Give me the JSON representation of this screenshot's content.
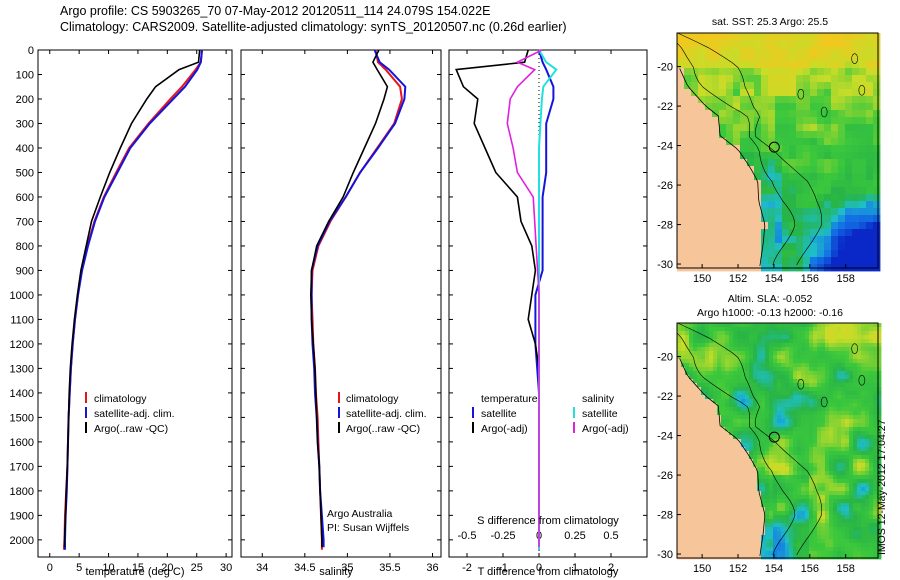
{
  "header": {
    "line1": "Argo profile: CS 5903265_70 07-May-2012 20120511_114 24.079S 154.022E",
    "line2": "Climatology: CARS2009. Satellite-adjusted climatology: synTS_20120507.nc (0.26d earlier)"
  },
  "depth_ticks": [
    "0",
    "100",
    "200",
    "300",
    "400",
    "500",
    "600",
    "700",
    "800",
    "900",
    "1000",
    "1100",
    "1200",
    "1300",
    "1400",
    "1500",
    "1600",
    "1700",
    "1800",
    "1900",
    "2000"
  ],
  "panels": {
    "temperature": {
      "xlabel": "temperature (deg C)",
      "xticks": [
        "0",
        "5",
        "10",
        "15",
        "20",
        "25",
        "30"
      ],
      "legend": [
        "climatology",
        "satellite-adj. clim.",
        "Argo(..raw -QC)"
      ]
    },
    "salinity": {
      "xlabel": "salinity",
      "xticks": [
        "34",
        "34.5",
        "35",
        "35.5",
        "36"
      ],
      "legend": [
        "climatology",
        "satellite-adj. clim.",
        "Argo(..raw -QC)"
      ],
      "note1": "Argo Australia",
      "note2": "PI: Susan Wijffels"
    },
    "difference": {
      "xlabel": "T difference from climatology",
      "xticks": [
        "-2",
        "-1",
        "0",
        "1",
        "2"
      ],
      "top_label": "S difference from climatology",
      "top_ticks": [
        "-0.5",
        "-0.25",
        "0",
        "0.25",
        "0.5"
      ],
      "legend_t_title": "temperature",
      "legend_s_title": "salinity",
      "legend_t": [
        "satellite",
        "Argo(-adj)"
      ],
      "legend_s": [
        "satellite",
        "Argo(-adj)"
      ]
    }
  },
  "maps": {
    "sst_title": "sat. SST: 25.3 Argo: 25.5",
    "sla_title1": "Altim. SLA: -0.052",
    "sla_title2": "Argo h1000: -0.13 h2000: -0.16",
    "lon_ticks": [
      "150",
      "152",
      "154",
      "156",
      "158"
    ],
    "lat_ticks": [
      "-20",
      "-22",
      "-24",
      "-26",
      "-28",
      "-30"
    ]
  },
  "footer": {
    "stamp": "IMOS 12-May-2012 17:04:27"
  },
  "colors": {
    "climatology": "#e8141c",
    "satellite": "#1414dc",
    "argo": "#000000",
    "salinity_sat": "#22e0e0",
    "salinity_argo": "#e020e0",
    "land": "#f6c69a"
  },
  "chart_data": [
    {
      "type": "line",
      "name": "temperature profile",
      "xlabel": "temperature (deg C)",
      "ylabel": "",
      "xlim": [
        -2,
        31
      ],
      "ylim": [
        2070,
        0
      ],
      "legend": "lower-center",
      "series": [
        {
          "name": "climatology",
          "color": "#e8141c",
          "points": [
            [
              25.9,
              0
            ],
            [
              25.7,
              50
            ],
            [
              24.8,
              80
            ],
            [
              22.5,
              150
            ],
            [
              20.5,
              200
            ],
            [
              16.8,
              300
            ],
            [
              13.5,
              400
            ],
            [
              11.3,
              500
            ],
            [
              9.2,
              600
            ],
            [
              7.6,
              700
            ],
            [
              6.4,
              800
            ],
            [
              5.4,
              900
            ],
            [
              4.8,
              1000
            ],
            [
              4.3,
              1100
            ],
            [
              3.9,
              1200
            ],
            [
              3.6,
              1300
            ],
            [
              3.4,
              1400
            ],
            [
              3.2,
              1500
            ],
            [
              3.1,
              1600
            ],
            [
              3.0,
              1700
            ],
            [
              2.8,
              1800
            ],
            [
              2.6,
              1900
            ],
            [
              2.5,
              2000
            ],
            [
              2.4,
              2040
            ]
          ]
        },
        {
          "name": "satellite-adj. clim.",
          "color": "#1414dc",
          "points": [
            [
              25.9,
              0
            ],
            [
              25.7,
              50
            ],
            [
              25.1,
              80
            ],
            [
              23.0,
              150
            ],
            [
              21.0,
              200
            ],
            [
              17.0,
              300
            ],
            [
              13.7,
              400
            ],
            [
              11.5,
              500
            ],
            [
              9.3,
              600
            ],
            [
              7.7,
              700
            ],
            [
              6.5,
              800
            ],
            [
              5.5,
              900
            ],
            [
              4.8,
              1000
            ],
            [
              4.3,
              1100
            ],
            [
              3.9,
              1200
            ],
            [
              3.6,
              1300
            ],
            [
              3.4,
              1400
            ],
            [
              3.2,
              1500
            ],
            [
              3.1,
              1600
            ],
            [
              3.0,
              1700
            ],
            [
              2.9,
              1800
            ],
            [
              2.7,
              1900
            ],
            [
              2.6,
              2000
            ],
            [
              2.6,
              2040
            ]
          ]
        },
        {
          "name": "Argo(..raw -QC)",
          "color": "#000000",
          "points": [
            [
              25.5,
              0
            ],
            [
              25.3,
              50
            ],
            [
              22.0,
              80
            ],
            [
              18.0,
              150
            ],
            [
              16.5,
              200
            ],
            [
              13.9,
              300
            ],
            [
              12.0,
              400
            ],
            [
              10.2,
              500
            ],
            [
              8.6,
              600
            ],
            [
              7.1,
              700
            ],
            [
              6.2,
              800
            ],
            [
              5.3,
              900
            ],
            [
              4.7,
              1000
            ],
            [
              4.2,
              1100
            ],
            [
              3.8,
              1200
            ],
            [
              3.5,
              1300
            ],
            [
              3.3,
              1400
            ],
            [
              3.2,
              1500
            ],
            [
              3.1,
              1600
            ],
            [
              3.0,
              1700
            ],
            [
              2.8,
              1800
            ],
            [
              2.7,
              1900
            ],
            [
              2.5,
              2000
            ],
            [
              2.5,
              2030
            ]
          ]
        }
      ]
    },
    {
      "type": "line",
      "name": "salinity profile",
      "xlabel": "salinity",
      "ylabel": "",
      "xlim": [
        33.75,
        36.1
      ],
      "ylim": [
        2070,
        0
      ],
      "legend": "lower-center",
      "series": [
        {
          "name": "climatology",
          "color": "#e8141c",
          "points": [
            [
              35.33,
              0
            ],
            [
              35.36,
              50
            ],
            [
              35.45,
              80
            ],
            [
              35.62,
              150
            ],
            [
              35.64,
              200
            ],
            [
              35.55,
              300
            ],
            [
              35.35,
              400
            ],
            [
              35.15,
              500
            ],
            [
              34.98,
              600
            ],
            [
              34.8,
              700
            ],
            [
              34.66,
              800
            ],
            [
              34.59,
              900
            ],
            [
              34.58,
              1000
            ],
            [
              34.59,
              1100
            ],
            [
              34.6,
              1200
            ],
            [
              34.62,
              1300
            ],
            [
              34.63,
              1400
            ],
            [
              34.65,
              1500
            ],
            [
              34.66,
              1600
            ],
            [
              34.67,
              1700
            ],
            [
              34.68,
              1800
            ],
            [
              34.69,
              1900
            ],
            [
              34.7,
              2000
            ],
            [
              34.7,
              2040
            ]
          ]
        },
        {
          "name": "satellite-adj. clim.",
          "color": "#1414dc",
          "points": [
            [
              35.32,
              0
            ],
            [
              35.38,
              50
            ],
            [
              35.49,
              80
            ],
            [
              35.68,
              150
            ],
            [
              35.67,
              200
            ],
            [
              35.56,
              300
            ],
            [
              35.36,
              400
            ],
            [
              35.15,
              500
            ],
            [
              34.98,
              600
            ],
            [
              34.79,
              700
            ],
            [
              34.65,
              800
            ],
            [
              34.58,
              900
            ],
            [
              34.58,
              1000
            ],
            [
              34.58,
              1100
            ],
            [
              34.59,
              1200
            ],
            [
              34.61,
              1300
            ],
            [
              34.62,
              1400
            ],
            [
              34.64,
              1500
            ],
            [
              34.65,
              1600
            ],
            [
              34.67,
              1700
            ],
            [
              34.68,
              1800
            ],
            [
              34.7,
              1900
            ],
            [
              34.72,
              2000
            ],
            [
              34.72,
              2030
            ]
          ]
        },
        {
          "name": "Argo(..raw -QC)",
          "color": "#000000",
          "points": [
            [
              35.37,
              0
            ],
            [
              35.3,
              50
            ],
            [
              35.35,
              80
            ],
            [
              35.47,
              150
            ],
            [
              35.43,
              200
            ],
            [
              35.33,
              300
            ],
            [
              35.2,
              400
            ],
            [
              35.07,
              500
            ],
            [
              34.95,
              600
            ],
            [
              34.78,
              700
            ],
            [
              34.64,
              800
            ],
            [
              34.58,
              900
            ],
            [
              34.57,
              1000
            ],
            [
              34.58,
              1100
            ],
            [
              34.6,
              1200
            ],
            [
              34.62,
              1300
            ],
            [
              34.63,
              1400
            ],
            [
              34.64,
              1500
            ],
            [
              34.65,
              1600
            ],
            [
              34.67,
              1700
            ],
            [
              34.68,
              1800
            ],
            [
              34.69,
              1900
            ],
            [
              34.7,
              2000
            ],
            [
              34.7,
              2030
            ]
          ]
        }
      ]
    },
    {
      "type": "line",
      "name": "difference profile",
      "xlabel": "T difference from climatology",
      "ylabel": "",
      "xlim": [
        -2.5,
        3.0
      ],
      "ylim": [
        2070,
        0
      ],
      "legend": "lower-center",
      "series": [
        {
          "name": "temperature satellite",
          "color": "#1414dc",
          "variable": "T",
          "points": [
            [
              0.0,
              0
            ],
            [
              0.1,
              50
            ],
            [
              0.2,
              80
            ],
            [
              0.4,
              150
            ],
            [
              0.4,
              200
            ],
            [
              0.2,
              300
            ],
            [
              0.2,
              400
            ],
            [
              0.2,
              500
            ],
            [
              0.1,
              600
            ],
            [
              0.1,
              700
            ],
            [
              0.1,
              800
            ],
            [
              0.1,
              900
            ],
            [
              -0.1,
              1000
            ],
            [
              -0.1,
              1200
            ],
            [
              0.0,
              1400
            ],
            [
              0.0,
              1600
            ],
            [
              0.0,
              1800
            ],
            [
              0.0,
              2000
            ],
            [
              0.0,
              2040
            ]
          ]
        },
        {
          "name": "temperature Argo(-adj)",
          "color": "#000000",
          "variable": "T",
          "points": [
            [
              -0.3,
              0
            ],
            [
              -0.4,
              50
            ],
            [
              -2.3,
              80
            ],
            [
              -2.1,
              150
            ],
            [
              -1.7,
              200
            ],
            [
              -1.8,
              300
            ],
            [
              -1.5,
              400
            ],
            [
              -1.2,
              500
            ],
            [
              -0.6,
              600
            ],
            [
              -0.5,
              700
            ],
            [
              -0.2,
              800
            ],
            [
              -0.1,
              900
            ],
            [
              -0.2,
              1000
            ],
            [
              -0.3,
              1100
            ],
            [
              -0.1,
              1200
            ],
            [
              0.0,
              1300
            ],
            [
              0.0,
              1500
            ],
            [
              0.0,
              1700
            ],
            [
              0.0,
              1900
            ],
            [
              0.0,
              2030
            ]
          ]
        },
        {
          "name": "salinity satellite",
          "color": "#22e0e0",
          "variable": "S",
          "points": [
            [
              0.0,
              0
            ],
            [
              0.05,
              50
            ],
            [
              0.12,
              80
            ],
            [
              0.03,
              150
            ],
            [
              0.02,
              200
            ],
            [
              0.01,
              300
            ],
            [
              0.0,
              400
            ],
            [
              0.0,
              500
            ],
            [
              0.0,
              700
            ],
            [
              0.0,
              900
            ],
            [
              0.0,
              1200
            ],
            [
              0.0,
              1500
            ],
            [
              0.0,
              1800
            ],
            [
              0.0,
              2040
            ]
          ]
        },
        {
          "name": "salinity Argo(-adj)",
          "color": "#e020e0",
          "variable": "S",
          "points": [
            [
              0.02,
              0
            ],
            [
              -0.15,
              50
            ],
            [
              -0.03,
              80
            ],
            [
              -0.15,
              150
            ],
            [
              -0.2,
              200
            ],
            [
              -0.22,
              300
            ],
            [
              -0.18,
              400
            ],
            [
              -0.15,
              500
            ],
            [
              -0.04,
              600
            ],
            [
              -0.03,
              700
            ],
            [
              -0.02,
              800
            ],
            [
              -0.01,
              900
            ],
            [
              0.0,
              1000
            ],
            [
              0.0,
              1200
            ],
            [
              0.0,
              1400
            ],
            [
              0.0,
              1600
            ],
            [
              0.0,
              1800
            ],
            [
              0.0,
              2030
            ]
          ]
        }
      ]
    },
    {
      "type": "heatmap",
      "name": "sat. SST map",
      "title": "sat. SST: 25.3 Argo: 25.5",
      "xlim": [
        148.6,
        159.8
      ],
      "ylim": [
        -30.2,
        -18.3
      ],
      "marker": [
        154.022,
        -24.079
      ]
    },
    {
      "type": "heatmap",
      "name": "Altim. SLA map",
      "title": "Altim. SLA: -0.052",
      "xlim": [
        148.6,
        159.8
      ],
      "ylim": [
        -30.2,
        -18.3
      ],
      "marker": [
        154.022,
        -24.079
      ]
    }
  ]
}
